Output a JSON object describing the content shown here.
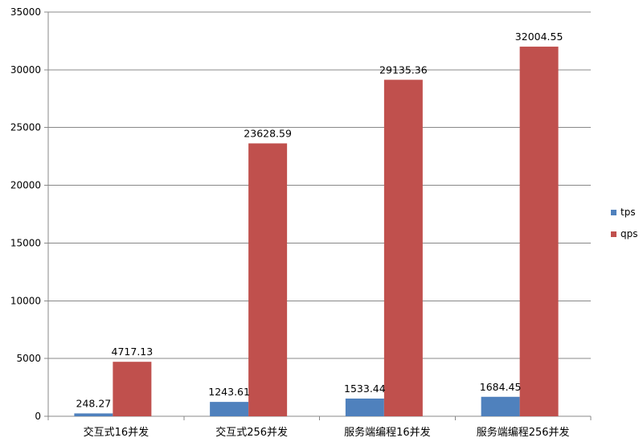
{
  "chart_data": {
    "type": "bar",
    "title": "",
    "xlabel": "",
    "ylabel": "",
    "categories": [
      "交互式16并发",
      "交互式256并发",
      "服务端编程16并发",
      "服务端编程256并发"
    ],
    "series": [
      {
        "name": "tps",
        "color": "#4F81BD",
        "values": [
          248.27,
          1243.61,
          1533.44,
          1684.45
        ]
      },
      {
        "name": "qps",
        "color": "#C0504D",
        "values": [
          4717.13,
          23628.59,
          29135.36,
          32004.55
        ]
      }
    ],
    "data_labels": [
      [
        "248.27",
        "1243.61",
        "1533.44",
        "1684.45"
      ],
      [
        "4717.13",
        "23628.59",
        "29135.36",
        "32004.55"
      ]
    ],
    "ylim": [
      0,
      35000
    ],
    "yticks": [
      0,
      5000,
      10000,
      15000,
      20000,
      25000,
      30000,
      35000
    ],
    "grid": true,
    "legend": "right",
    "colors": {
      "grid": "#888888",
      "axis": "#888888"
    }
  }
}
